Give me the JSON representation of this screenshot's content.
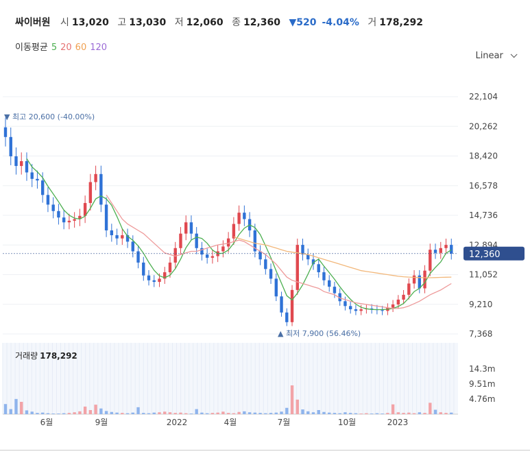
{
  "header": {
    "name": "싸이버원",
    "open_label": "시",
    "open": "13,020",
    "high_label": "고",
    "high": "13,030",
    "low_label": "저",
    "low": "12,060",
    "close_label": "종",
    "close": "12,360",
    "change": "▼520",
    "change_pct": "-4.04%",
    "volume_label": "거",
    "volume": "178,292"
  },
  "ma_legend": {
    "label": "이동평균",
    "items": [
      {
        "text": "5",
        "color": "#4caf50"
      },
      {
        "text": "20",
        "color": "#e57373"
      },
      {
        "text": "60",
        "color": "#f0a050"
      },
      {
        "text": "120",
        "color": "#9b6bd6"
      }
    ]
  },
  "scale_button": {
    "label": "Linear",
    "icon": "chevron-down-icon"
  },
  "chart_data": {
    "type": "candlestick",
    "price_axis": {
      "ticks": [
        "22,104",
        "20,262",
        "18,420",
        "16,578",
        "14,736",
        "12,894",
        "11,052",
        "9,210",
        "7,368"
      ],
      "range": [
        7368,
        22104
      ]
    },
    "x_ticks": [
      "6월",
      "9월",
      "2022",
      "4월",
      "7월",
      "10월",
      "2023"
    ],
    "current_price": "12,360",
    "annotations": {
      "high": "▼ 최고 20,600 (-40.00%)",
      "low": "▲ 최저 7,900 (56.46%)"
    },
    "volume_label": "거래량",
    "volume_value": "178,292",
    "volume_axis": {
      "ticks": [
        "14.3m",
        "9.51m",
        "4.76m"
      ]
    },
    "close_series": [
      19600,
      18400,
      17800,
      18100,
      17400,
      17000,
      16900,
      16000,
      15400,
      15000,
      14600,
      14300,
      14400,
      14500,
      14700,
      15500,
      16800,
      17300,
      15400,
      13800,
      13500,
      13300,
      13500,
      13100,
      12500,
      11800,
      11000,
      10700,
      10600,
      10800,
      11200,
      11800,
      12700,
      13600,
      14300,
      13600,
      12700,
      12300,
      12100,
      12200,
      12500,
      12800,
      13300,
      14200,
      14900,
      14500,
      13800,
      12500,
      12000,
      11400,
      10800,
      9700,
      8700,
      8100,
      10100,
      12900,
      12300,
      12000,
      11700,
      11200,
      10700,
      10300,
      9900,
      9400,
      9100,
      8900,
      8800,
      8900,
      8950,
      8900,
      8850,
      8800,
      9000,
      9200,
      9500,
      9800,
      10500,
      11000,
      10200,
      11300,
      12600,
      12400,
      12700,
      12900,
      12360
    ],
    "ma20_series": [
      null,
      null,
      null,
      null,
      null,
      null,
      null,
      null,
      null,
      null,
      null,
      null,
      null,
      null,
      null,
      null,
      null,
      null,
      null,
      16000,
      15500,
      15000,
      14500,
      14200,
      14000,
      13800,
      13600,
      13300,
      13000,
      12700,
      12400,
      12300,
      12200,
      12300,
      12400,
      12500,
      12500,
      12600,
      12700,
      12800,
      12900,
      12950,
      13000,
      13100,
      13200,
      13100,
      12900,
      12700,
      12500,
      12300,
      12000,
      11700,
      11300,
      10900,
      10700,
      10600,
      10500,
      10400,
      10300,
      10200,
      10000,
      9900,
      9800,
      9600,
      9500,
      9400,
      9300,
      9250,
      9200,
      9150,
      9100,
      9050,
      9000,
      8950,
      8950,
      9000,
      9100,
      9250,
      9400,
      9600,
      9800,
      9950,
      10100,
      10300,
      10500
    ],
    "ma60_series": [
      null,
      null,
      null,
      null,
      null,
      null,
      null,
      null,
      null,
      null,
      null,
      null,
      null,
      null,
      null,
      null,
      null,
      null,
      null,
      null,
      null,
      null,
      null,
      null,
      null,
      null,
      null,
      null,
      null,
      null,
      null,
      null,
      null,
      null,
      null,
      null,
      null,
      null,
      null,
      null,
      null,
      null,
      null,
      13400,
      13300,
      13200,
      13100,
      13000,
      12950,
      12900,
      12800,
      12700,
      12600,
      12500,
      12450,
      12400,
      12350,
      12300,
      12200,
      12100,
      12000,
      11900,
      11800,
      11700,
      11600,
      11500,
      11400,
      11300,
      11250,
      11200,
      11150,
      11100,
      11050,
      11000,
      10950,
      10920,
      10900,
      10880,
      10870,
      10860,
      10860,
      10870,
      10880,
      10890,
      10900
    ],
    "volume_series": [
      3.2,
      1.6,
      4.8,
      3.9,
      1.2,
      0.8,
      0.4,
      0.5,
      0.3,
      0.2,
      0.2,
      0.3,
      0.4,
      0.6,
      0.9,
      2.4,
      1.3,
      3.0,
      1.8,
      1.0,
      0.7,
      0.5,
      0.4,
      0.3,
      0.5,
      2.2,
      0.4,
      0.3,
      0.5,
      0.6,
      0.8,
      0.6,
      0.4,
      0.5,
      0.3,
      0.2,
      1.6,
      0.5,
      0.3,
      0.4,
      0.5,
      0.8,
      0.4,
      0.3,
      0.7,
      0.9,
      0.6,
      0.5,
      0.4,
      0.3,
      0.4,
      0.5,
      0.8,
      2.0,
      9.1,
      4.6,
      1.5,
      0.9,
      0.6,
      1.3,
      0.7,
      0.5,
      0.4,
      0.3,
      0.6,
      0.4,
      0.3,
      0.2,
      0.3,
      0.2,
      0.3,
      0.2,
      0.4,
      3.1,
      0.6,
      0.4,
      0.5,
      0.3,
      0.6,
      0.4,
      3.6,
      1.4,
      0.6,
      0.4,
      0.5
    ]
  }
}
